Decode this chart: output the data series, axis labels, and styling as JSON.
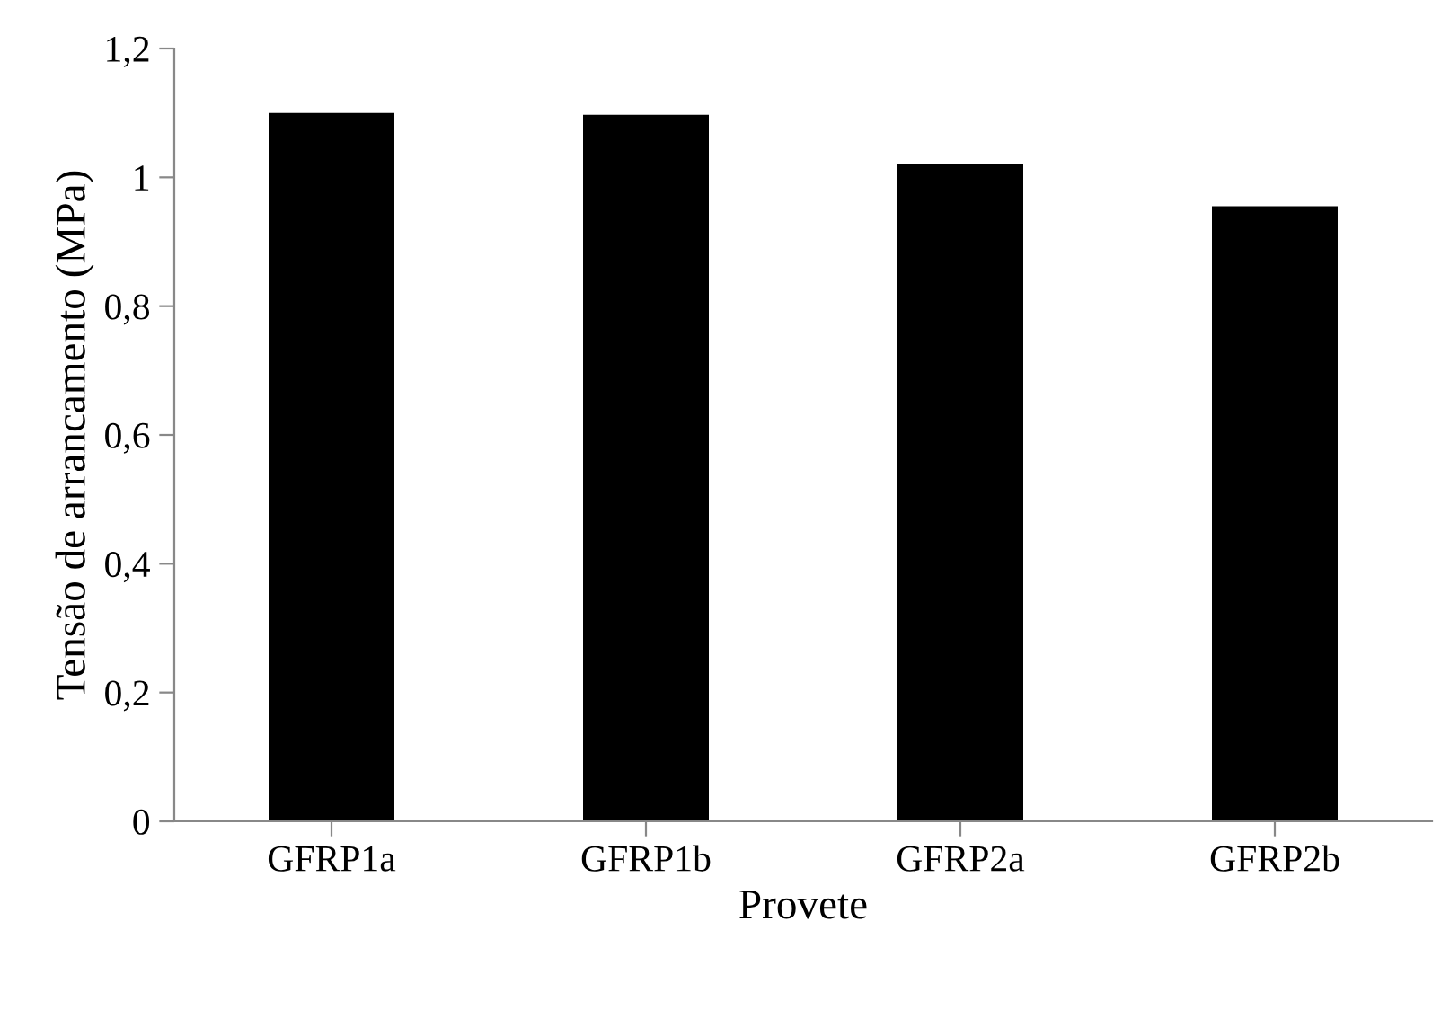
{
  "chart_data": {
    "type": "bar",
    "xlabel": "Provete",
    "ylabel": "Tensão de arrancamento (MPa)",
    "categories": [
      "GFRP1a",
      "GFRP1b",
      "GFRP2a",
      "GFRP2b"
    ],
    "values": [
      1.1,
      1.097,
      1.02,
      0.955
    ],
    "color": "#000000",
    "ylim": [
      0,
      1.2
    ],
    "yticks": [
      0,
      {
        "value": 0.2,
        "label": "0,2"
      },
      {
        "value": 0.4,
        "label": "0,4"
      },
      {
        "value": 0.6,
        "label": "0,6"
      },
      {
        "value": 0.8,
        "label": "0,8"
      },
      1,
      {
        "value": 1.2,
        "label": "1,2"
      }
    ],
    "grid": false,
    "legend": false
  }
}
